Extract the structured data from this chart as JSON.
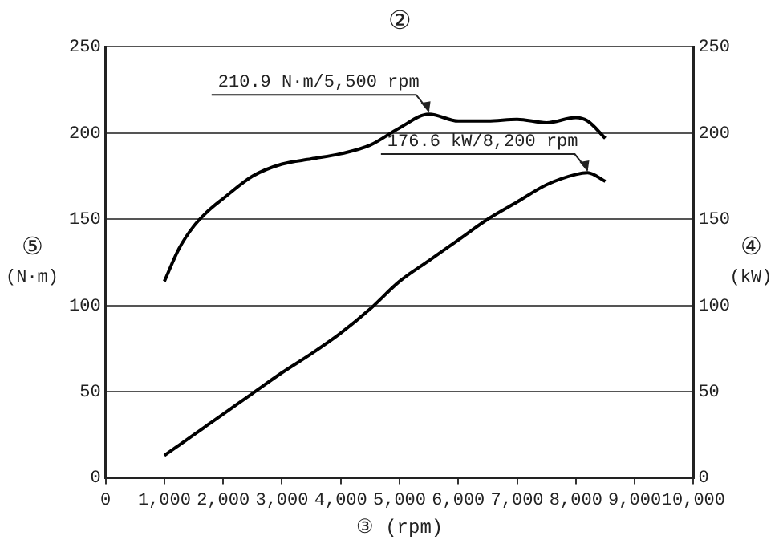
{
  "chart_data": {
    "type": "line",
    "title": "②",
    "xlabel": "③ (rpm)",
    "ylabel": "⑤ (N·m)",
    "y2label": "④ (kW)",
    "x": [
      1000,
      1250,
      1500,
      1750,
      2000,
      2500,
      3000,
      3500,
      4000,
      4500,
      5000,
      5500,
      6000,
      6500,
      7000,
      7500,
      8000,
      8200,
      8500
    ],
    "series": [
      {
        "color": "#000000",
        "values": [
          114,
          133,
          146,
          155,
          162,
          175,
          182,
          185,
          188,
          193,
          203,
          211,
          207,
          207,
          208,
          206,
          209,
          207,
          197
        ]
      },
      {
        "color": "#000000",
        "axis": "y2",
        "values": [
          13,
          19,
          25,
          31,
          37,
          49,
          61,
          72,
          84,
          98,
          114,
          126,
          138,
          150,
          160,
          170,
          176,
          177,
          172
        ]
      }
    ],
    "xlim": [
      0,
      10000
    ],
    "xticks": [
      0,
      {
        "value": 1000,
        "label": "1,000"
      },
      {
        "value": 2000,
        "label": "2,000"
      },
      {
        "value": 3000,
        "label": "3,000"
      },
      {
        "value": 4000,
        "label": "4,000"
      },
      {
        "value": 5000,
        "label": "5,000"
      },
      {
        "value": 6000,
        "label": "6,000"
      },
      {
        "value": 7000,
        "label": "7,000"
      },
      {
        "value": 8000,
        "label": "8,000"
      },
      {
        "value": 9000,
        "label": "9,000"
      },
      {
        "value": 10000,
        "label": "10,000"
      }
    ],
    "ylim": [
      0,
      250
    ],
    "yticks": [
      0,
      50,
      100,
      150,
      200,
      250
    ],
    "y2lim": [
      0,
      250
    ],
    "y2ticks": [
      0,
      50,
      100,
      150,
      200,
      250
    ],
    "annotations": [
      {
        "text": "210.9 N·m/5,500 rpm",
        "x": 5500,
        "y": 211
      },
      {
        "text": "176.6 kW/8,200 rpm",
        "x": 8200,
        "y": 176.6
      }
    ],
    "grid": "y",
    "legend": false,
    "marker": "none",
    "line_style": "solid"
  }
}
